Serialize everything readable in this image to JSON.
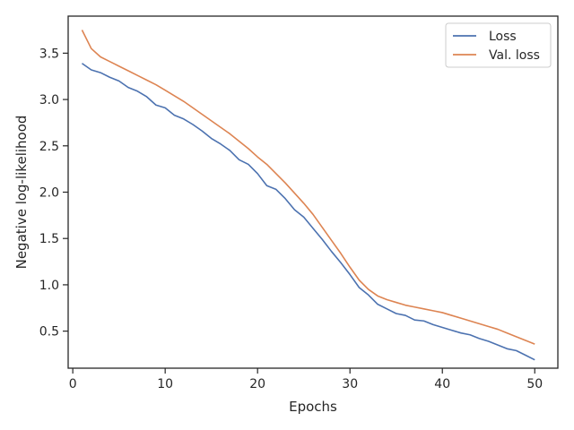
{
  "chart_data": {
    "type": "line",
    "title": "",
    "xlabel": "Epochs",
    "ylabel": "Negative log-likelihood",
    "xlim": [
      -0.5,
      52.5
    ],
    "ylim": [
      0.1,
      3.9
    ],
    "xticks": [
      0,
      10,
      20,
      30,
      40,
      50
    ],
    "yticks": [
      0.5,
      1.0,
      1.5,
      2.0,
      2.5,
      3.0,
      3.5
    ],
    "grid": false,
    "legend_position": "top-right",
    "x": [
      1,
      2,
      3,
      4,
      5,
      6,
      7,
      8,
      9,
      10,
      11,
      12,
      13,
      14,
      15,
      16,
      17,
      18,
      19,
      20,
      21,
      22,
      23,
      24,
      25,
      26,
      27,
      28,
      29,
      30,
      31,
      32,
      33,
      34,
      35,
      36,
      37,
      38,
      39,
      40,
      41,
      42,
      43,
      44,
      45,
      46,
      47,
      48,
      49,
      50
    ],
    "series": [
      {
        "name": "Loss",
        "color": "#4c72b0",
        "values": [
          3.39,
          3.32,
          3.29,
          3.24,
          3.2,
          3.13,
          3.09,
          3.03,
          2.94,
          2.91,
          2.83,
          2.79,
          2.73,
          2.66,
          2.58,
          2.52,
          2.45,
          2.35,
          2.3,
          2.2,
          2.07,
          2.03,
          1.93,
          1.81,
          1.73,
          1.61,
          1.49,
          1.36,
          1.24,
          1.11,
          0.97,
          0.89,
          0.79,
          0.74,
          0.69,
          0.67,
          0.62,
          0.61,
          0.57,
          0.54,
          0.51,
          0.48,
          0.46,
          0.42,
          0.39,
          0.35,
          0.31,
          0.29,
          0.24,
          0.19
        ]
      },
      {
        "name": "Val. loss",
        "color": "#dd8452",
        "values": [
          3.75,
          3.55,
          3.46,
          3.41,
          3.36,
          3.31,
          3.26,
          3.21,
          3.16,
          3.1,
          3.04,
          2.98,
          2.91,
          2.84,
          2.77,
          2.7,
          2.63,
          2.55,
          2.47,
          2.38,
          2.3,
          2.2,
          2.1,
          1.99,
          1.88,
          1.76,
          1.62,
          1.48,
          1.34,
          1.19,
          1.05,
          0.95,
          0.88,
          0.84,
          0.81,
          0.78,
          0.76,
          0.74,
          0.72,
          0.7,
          0.67,
          0.64,
          0.61,
          0.58,
          0.55,
          0.52,
          0.48,
          0.44,
          0.4,
          0.36
        ]
      }
    ]
  }
}
